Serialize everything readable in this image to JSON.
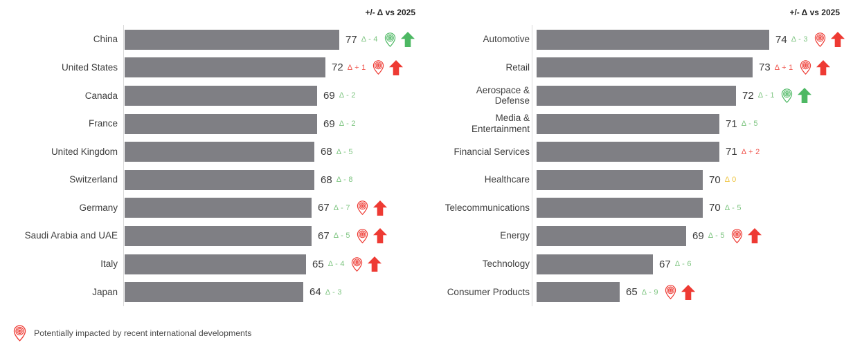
{
  "colors": {
    "bar": "#7f7f84",
    "axis_line": "#d9d9d9",
    "delta_green": "#7cc47f",
    "delta_red": "#f0534b",
    "delta_amber": "#eec33f",
    "icon_green": "#4db863",
    "icon_red": "#ee3a33"
  },
  "left_chart": {
    "header": "+/- Δ vs 2025",
    "axis_min": 0,
    "axis_max": 80,
    "rows": [
      {
        "label": "China",
        "value": 77,
        "delta": "Δ - 4",
        "delta_color": "green",
        "pin": "green",
        "arrow": "green"
      },
      {
        "label": "United States",
        "value": 72,
        "delta": "Δ + 1",
        "delta_color": "red",
        "pin": "red",
        "arrow": "red"
      },
      {
        "label": "Canada",
        "value": 69,
        "delta": "Δ - 2",
        "delta_color": "green",
        "pin": null,
        "arrow": null
      },
      {
        "label": "France",
        "value": 69,
        "delta": "Δ - 2",
        "delta_color": "green",
        "pin": null,
        "arrow": null
      },
      {
        "label": "United Kingdom",
        "value": 68,
        "delta": "Δ - 5",
        "delta_color": "green",
        "pin": null,
        "arrow": null
      },
      {
        "label": "Switzerland",
        "value": 68,
        "delta": "Δ - 8",
        "delta_color": "green",
        "pin": null,
        "arrow": null
      },
      {
        "label": "Germany",
        "value": 67,
        "delta": "Δ - 7",
        "delta_color": "green",
        "pin": "red",
        "arrow": "red"
      },
      {
        "label": "Saudi Arabia and UAE",
        "value": 67,
        "delta": "Δ - 5",
        "delta_color": "green",
        "pin": "red",
        "arrow": "red"
      },
      {
        "label": "Italy",
        "value": 65,
        "delta": "Δ - 4",
        "delta_color": "green",
        "pin": "red",
        "arrow": "red"
      },
      {
        "label": "Japan",
        "value": 64,
        "delta": "Δ - 3",
        "delta_color": "green",
        "pin": null,
        "arrow": null
      }
    ]
  },
  "right_chart": {
    "header": "+/- Δ vs 2025",
    "axis_min": 60,
    "axis_max": 75,
    "rows": [
      {
        "label": "Automotive",
        "value": 74,
        "delta": "Δ - 3",
        "delta_color": "green",
        "pin": "red",
        "arrow": "red"
      },
      {
        "label": "Retail",
        "value": 73,
        "delta": "Δ + 1",
        "delta_color": "red",
        "pin": "red",
        "arrow": "red"
      },
      {
        "label": "Aerospace &\nDefense",
        "value": 72,
        "delta": "Δ - 1",
        "delta_color": "green",
        "pin": "green",
        "arrow": "green"
      },
      {
        "label": "Media &\nEntertainment",
        "value": 71,
        "delta": "Δ - 5",
        "delta_color": "green",
        "pin": null,
        "arrow": null
      },
      {
        "label": "Financial Services",
        "value": 71,
        "delta": "Δ + 2",
        "delta_color": "red",
        "pin": null,
        "arrow": null
      },
      {
        "label": "Healthcare",
        "value": 70,
        "delta": "Δ 0",
        "delta_color": "amber",
        "pin": null,
        "arrow": null
      },
      {
        "label": "Telecommunications",
        "value": 70,
        "delta": "Δ - 5",
        "delta_color": "green",
        "pin": null,
        "arrow": null
      },
      {
        "label": "Energy",
        "value": 69,
        "delta": "Δ - 5",
        "delta_color": "green",
        "pin": "red",
        "arrow": "red"
      },
      {
        "label": "Technology",
        "value": 67,
        "delta": "Δ - 6",
        "delta_color": "green",
        "pin": null,
        "arrow": null
      },
      {
        "label": "Consumer Products",
        "value": 65,
        "delta": "Δ - 9",
        "delta_color": "green",
        "pin": "red",
        "arrow": "red"
      }
    ]
  },
  "legend": {
    "icon_color": "red",
    "text": "Potentially impacted by recent international developments"
  },
  "chart_data": [
    {
      "type": "bar",
      "orientation": "horizontal",
      "annotation": "+/- Δ vs 2025",
      "categories": [
        "China",
        "United States",
        "Canada",
        "France",
        "United Kingdom",
        "Switzerland",
        "Germany",
        "Saudi Arabia and UAE",
        "Italy",
        "Japan"
      ],
      "values": [
        77,
        72,
        69,
        69,
        68,
        68,
        67,
        67,
        65,
        64
      ],
      "delta_vs_2025": [
        -4,
        1,
        -2,
        -2,
        -5,
        -8,
        -7,
        -5,
        -4,
        -3
      ],
      "impacted_by_international_developments": [
        "China",
        "United States",
        "Germany",
        "Saudi Arabia and UAE",
        "Italy"
      ],
      "trend_arrow_up": [
        "China",
        "United States",
        "Germany",
        "Saudi Arabia and UAE",
        "Italy"
      ],
      "xlim": [
        0,
        80
      ],
      "grid": false,
      "bar_color": "#7f7f84"
    },
    {
      "type": "bar",
      "orientation": "horizontal",
      "annotation": "+/- Δ vs 2025",
      "categories": [
        "Automotive",
        "Retail",
        "Aerospace & Defense",
        "Media & Entertainment",
        "Financial Services",
        "Healthcare",
        "Telecommunications",
        "Energy",
        "Technology",
        "Consumer Products"
      ],
      "values": [
        74,
        73,
        72,
        71,
        71,
        70,
        70,
        69,
        67,
        65
      ],
      "delta_vs_2025": [
        -3,
        1,
        -1,
        -5,
        2,
        0,
        -5,
        -5,
        -6,
        -9
      ],
      "impacted_by_international_developments": [
        "Automotive",
        "Retail",
        "Aerospace & Defense",
        "Energy",
        "Consumer Products"
      ],
      "trend_arrow_up": [
        "Automotive",
        "Retail",
        "Aerospace & Defense",
        "Energy",
        "Consumer Products"
      ],
      "xlim": [
        60,
        75
      ],
      "grid": false,
      "bar_color": "#7f7f84"
    }
  ]
}
